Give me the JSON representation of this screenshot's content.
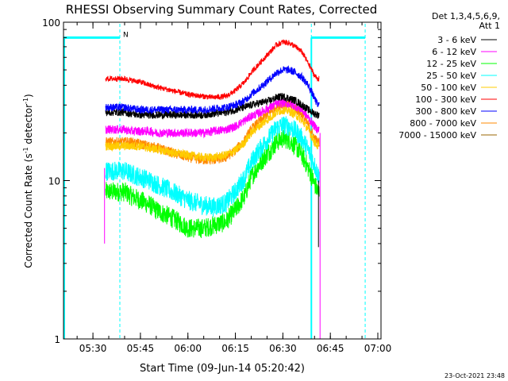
{
  "chart_data": {
    "type": "line",
    "title": "RHESSI Observing Summary Count Rates, Corrected",
    "xlabel": "Start Time (09-Jun-14 05:20:42)",
    "ylabel_main": "Corrected Count Rate (s",
    "ylabel_sup1": "-1",
    "ylabel_mid": " detector",
    "ylabel_sup2": "-1",
    "ylabel_end": ")",
    "y_scale": "log",
    "ylim": [
      1,
      100
    ],
    "xlim": [
      "05:20:42",
      "07:01:00"
    ],
    "x_ticks": [
      "05:30",
      "05:45",
      "06:00",
      "06:15",
      "06:30",
      "06:45",
      "07:00"
    ],
    "y_ticks": [
      "1",
      "10",
      "100"
    ],
    "legend_header": [
      "Det 1,3,4,5,6,9,",
      "Att 1"
    ],
    "annotation_flag": "N",
    "timestamp": "23-Oct-2021 23:48",
    "flag_segments": [
      [
        "05:20:42",
        "05:38:30"
      ],
      [
        "06:39:00",
        "06:56:00"
      ]
    ],
    "dashed_markers": [
      "05:38:30",
      "06:39:00",
      "06:56:00"
    ],
    "flag_level": 80,
    "data_start": "05:34:00",
    "data_end": "06:41:30",
    "x_times": [
      "05:34",
      "05:38",
      "05:40",
      "05:42",
      "05:45",
      "05:48",
      "05:50",
      "05:55",
      "06:00",
      "06:05",
      "06:08",
      "06:12",
      "06:15",
      "06:18",
      "06:20",
      "06:23",
      "06:26",
      "06:28",
      "06:30",
      "06:32",
      "06:34",
      "06:36",
      "06:38",
      "06:40",
      "06:41"
    ],
    "series": [
      {
        "name": "3 - 6 keV",
        "color": "#000000",
        "noise": 0.035,
        "values": [
          27,
          27,
          27,
          26.5,
          26,
          26,
          26,
          26,
          26,
          26,
          26.5,
          27,
          28,
          29,
          30,
          31,
          32,
          33.5,
          34,
          33,
          32,
          30,
          28,
          26.5,
          26
        ]
      },
      {
        "name": "6 - 12 keV",
        "color": "#ff00ff",
        "noise": 0.04,
        "values": [
          21,
          21,
          21,
          20.5,
          20.5,
          20.5,
          20,
          20,
          20,
          20,
          20.5,
          21,
          22,
          24,
          25.5,
          27,
          29,
          30.5,
          31,
          30.5,
          29.5,
          28,
          25,
          22,
          21
        ]
      },
      {
        "name": "12 - 25 keV",
        "color": "#00ff00",
        "noise": 0.09,
        "values": [
          8.5,
          8.5,
          8.5,
          8.0,
          7.5,
          7.0,
          6.5,
          5.8,
          5.0,
          5.0,
          5.2,
          5.5,
          6.5,
          8.0,
          10.5,
          13,
          15.5,
          17.5,
          18.5,
          18,
          16.5,
          14.5,
          12,
          9.5,
          8.5
        ]
      },
      {
        "name": "25 - 50 keV",
        "color": "#00ffff",
        "noise": 0.09,
        "values": [
          11.5,
          11.5,
          11.5,
          11,
          10.5,
          10,
          9.5,
          8.5,
          7.5,
          7.0,
          6.8,
          7.2,
          8.5,
          10.5,
          13,
          16,
          19,
          21.5,
          22.5,
          22,
          20.5,
          18.5,
          15.5,
          12.5,
          11
        ]
      },
      {
        "name": "50 - 100 keV",
        "color": "#ffcc00",
        "noise": 0.04,
        "values": [
          16.5,
          16.5,
          16.5,
          16.5,
          16.5,
          16,
          15.8,
          15,
          14.5,
          14,
          14,
          14.5,
          15.5,
          17.5,
          20,
          22.5,
          25,
          27,
          28,
          27.5,
          26,
          24,
          21,
          17.5,
          16.5
        ]
      },
      {
        "name": "100 - 300 keV",
        "color": "#ff0000",
        "noise": 0.025,
        "values": [
          44,
          44,
          44,
          43,
          42,
          40,
          39,
          37,
          35,
          34,
          33.5,
          34,
          37,
          42,
          48,
          56,
          65,
          72,
          75,
          74,
          70,
          65,
          55,
          46,
          44
        ]
      },
      {
        "name": "300 - 800 keV",
        "color": "#0000ff",
        "noise": 0.035,
        "values": [
          29,
          29,
          29,
          28.5,
          28,
          28,
          28,
          28,
          28,
          28,
          28.5,
          29,
          30,
          32,
          35,
          39,
          44,
          48,
          50,
          50,
          48,
          45,
          40,
          33,
          30
        ]
      },
      {
        "name": "800 - 7000 keV",
        "color": "#ff8800",
        "noise": 0.045,
        "values": [
          17.5,
          17.5,
          17.5,
          17.5,
          17,
          16.5,
          16.2,
          15,
          14,
          13.5,
          13.5,
          14,
          15.5,
          18,
          21,
          24,
          27,
          29.5,
          30.5,
          30,
          28.5,
          26,
          22.5,
          18.5,
          17.5
        ]
      },
      {
        "name": "7000 - 15000 keV",
        "color": "#996600",
        "noise": 0.03,
        "values": []
      }
    ]
  }
}
